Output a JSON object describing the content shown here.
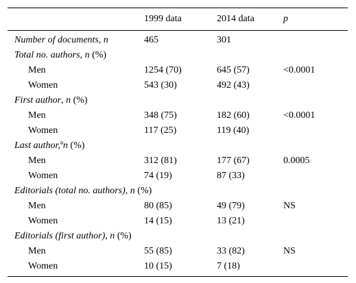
{
  "table": {
    "headers": {
      "col1": "",
      "col2": "1999 data",
      "col3": "2014 data",
      "col4": "p"
    },
    "rows": [
      {
        "type": "section",
        "label_italic": "Number of documents",
        "label_rest": ", n",
        "v1999": "465",
        "v2014": "301",
        "p": ""
      },
      {
        "type": "section",
        "label_italic": "Total no. authors",
        "label_rest": ", n (%)",
        "v1999": "",
        "v2014": "",
        "p": ""
      },
      {
        "type": "sub",
        "label": "Men",
        "v1999": "1254 (70)",
        "v2014": "645 (57)",
        "p": "<0.0001"
      },
      {
        "type": "sub",
        "label": "Women",
        "v1999": "543 (30)",
        "v2014": "492 (43)",
        "p": ""
      },
      {
        "type": "section",
        "label_italic": "First author",
        "label_rest": ", n (%)",
        "v1999": "",
        "v2014": "",
        "p": ""
      },
      {
        "type": "sub",
        "label": "Men",
        "v1999": "348 (75)",
        "v2014": "182 (60)",
        "p": "<0.0001"
      },
      {
        "type": "sub",
        "label": "Women",
        "v1999": "117 (25)",
        "v2014": "119 (40)",
        "p": ""
      },
      {
        "type": "section",
        "label_italic": "Last author,",
        "label_sup": "a",
        "label_rest": "n (%)",
        "v1999": "",
        "v2014": "",
        "p": ""
      },
      {
        "type": "sub",
        "label": "Men",
        "v1999": "312 (81)",
        "v2014": "177 (67)",
        "p": "0.0005"
      },
      {
        "type": "sub",
        "label": "Women",
        "v1999": "74 (19)",
        "v2014": "87 (33)",
        "p": ""
      },
      {
        "type": "section",
        "label_italic": "Editorials (total no. authors)",
        "label_rest": ", n (%)",
        "v1999": "",
        "v2014": "",
        "p": ""
      },
      {
        "type": "sub",
        "label": "Men",
        "v1999": "80 (85)",
        "v2014": "49 (79)",
        "p": "NS"
      },
      {
        "type": "sub",
        "label": "Women",
        "v1999": "14 (15)",
        "v2014": "13 (21)",
        "p": ""
      },
      {
        "type": "section",
        "label_italic": "Editorials (first author)",
        "label_rest": ", n (%)",
        "v1999": "",
        "v2014": "",
        "p": ""
      },
      {
        "type": "sub",
        "label": "Men",
        "v1999": "55 (85)",
        "v2014": "33 (82)",
        "p": "NS"
      },
      {
        "type": "sub",
        "label": "Women",
        "v1999": "10 (15)",
        "v2014": "7 (18)",
        "p": ""
      }
    ]
  }
}
